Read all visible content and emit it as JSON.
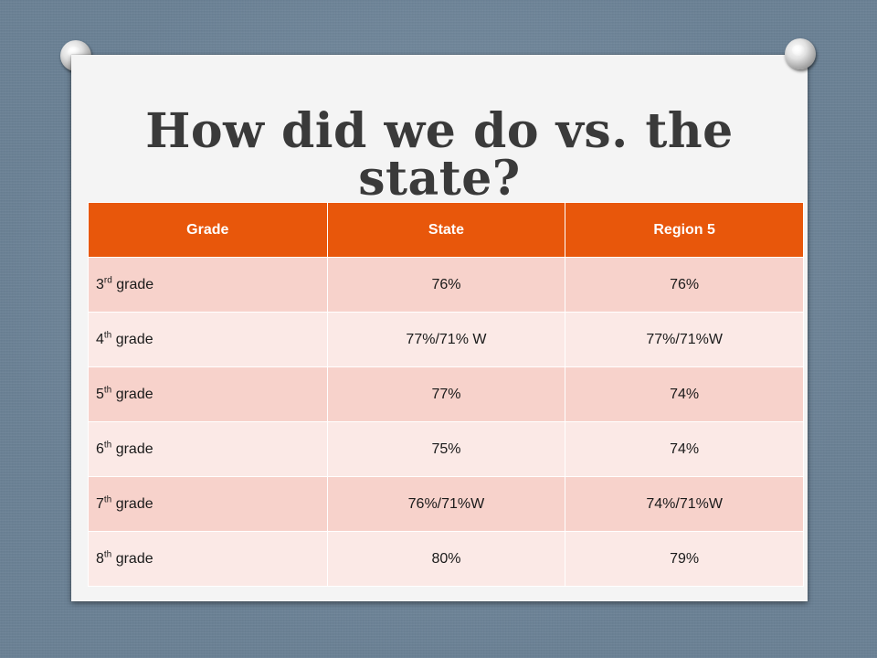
{
  "slide": {
    "title": "How did we do vs. the state?"
  },
  "table": {
    "headers": [
      "Grade",
      "State",
      "Region 5"
    ],
    "rows": [
      {
        "grade_num": "3",
        "grade_sup": "rd",
        "grade_word": " grade",
        "state": "76%",
        "region": "76%"
      },
      {
        "grade_num": "4",
        "grade_sup": "th",
        "grade_word": " grade",
        "state": "77%/71% W",
        "region": "77%/71%W"
      },
      {
        "grade_num": "5",
        "grade_sup": "th",
        "grade_word": " grade",
        "state": "77%",
        "region": "74%"
      },
      {
        "grade_num": "6",
        "grade_sup": "th",
        "grade_word": " grade",
        "state": "75%",
        "region": "74%"
      },
      {
        "grade_num": "7",
        "grade_sup": "th",
        "grade_word": " grade",
        "state": "76%/71%W",
        "region": "74%/71%W"
      },
      {
        "grade_num": "8",
        "grade_sup": "th",
        "grade_word": " grade",
        "state": "80%",
        "region": "79%"
      }
    ]
  },
  "colors": {
    "header_bg": "#e8570b",
    "row_odd": "#f7d2cb",
    "row_even": "#fbe9e6"
  }
}
